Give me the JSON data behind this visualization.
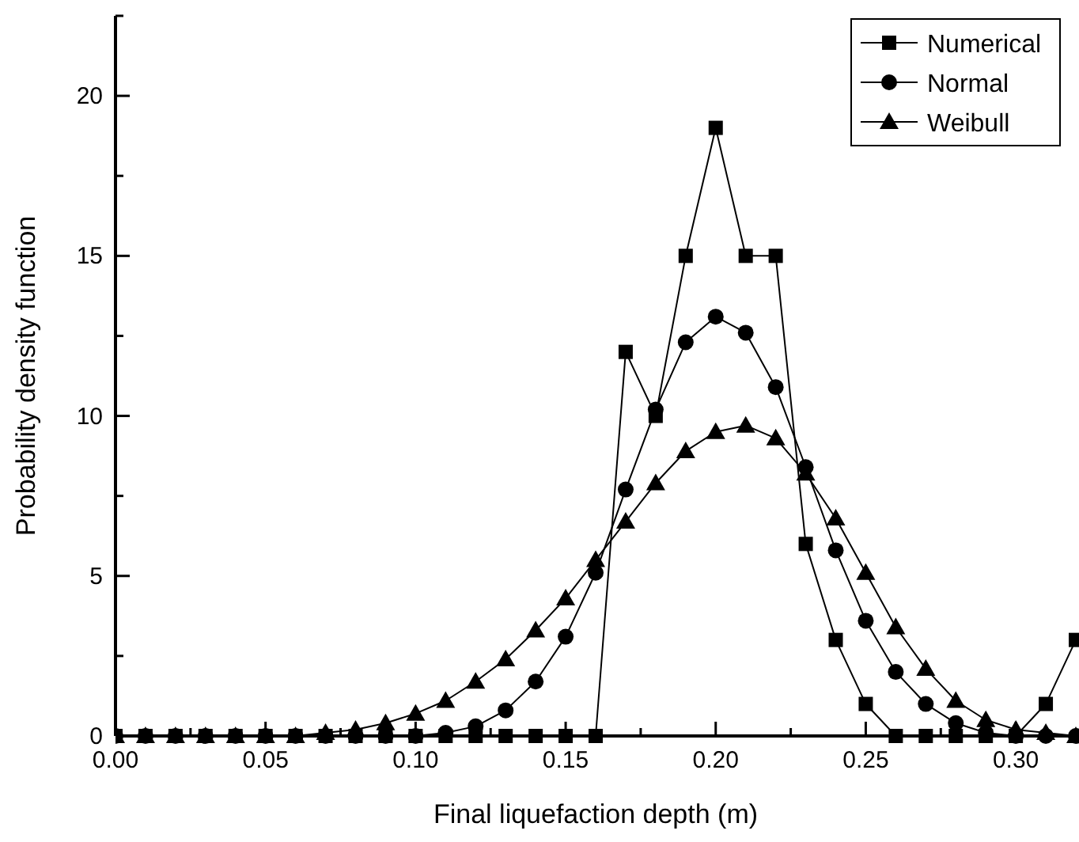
{
  "chart_data": {
    "type": "line",
    "xlabel": "Final liquefaction depth (m)",
    "ylabel": "Probability density function",
    "x": [
      0,
      0.01,
      0.02,
      0.03,
      0.04,
      0.05,
      0.06,
      0.07,
      0.08,
      0.09,
      0.1,
      0.11,
      0.12,
      0.13,
      0.14,
      0.15,
      0.16,
      0.17,
      0.18,
      0.19,
      0.2,
      0.21,
      0.22,
      0.23,
      0.24,
      0.25,
      0.26,
      0.27,
      0.28,
      0.29,
      0.3,
      0.31,
      0.32
    ],
    "series": [
      {
        "name": "Numerical",
        "color": "#000000",
        "marker": "square",
        "values": [
          0,
          0,
          0,
          0,
          0,
          0,
          0,
          0,
          0,
          0,
          0,
          0,
          0,
          0,
          0,
          0,
          0,
          12,
          10,
          15,
          19,
          15,
          15,
          6,
          3,
          1,
          0,
          0,
          0,
          0,
          0,
          1,
          3
        ]
      },
      {
        "name": "Normal",
        "color": "#000000",
        "marker": "circle",
        "values": [
          0,
          0,
          0,
          0,
          0,
          0,
          0,
          0,
          0,
          0,
          0,
          0.1,
          0.3,
          0.8,
          1.7,
          3.1,
          5.1,
          7.7,
          10.2,
          12.3,
          13.1,
          12.6,
          10.9,
          8.4,
          5.8,
          3.6,
          2,
          1,
          0.4,
          0.1,
          0,
          0,
          0
        ]
      },
      {
        "name": "Weibull",
        "color": "#000000",
        "marker": "triangle",
        "values": [
          0,
          0,
          0,
          0,
          0,
          0,
          0,
          0.1,
          0.2,
          0.4,
          0.7,
          1.1,
          1.7,
          2.4,
          3.3,
          4.3,
          5.5,
          6.7,
          7.9,
          8.9,
          9.5,
          9.7,
          9.3,
          8.2,
          6.8,
          5.1,
          3.4,
          2.1,
          1.1,
          0.5,
          0.2,
          0.1,
          0
        ]
      }
    ],
    "xlim": [
      0,
      0.32
    ],
    "xticks": [
      {
        "value": 0,
        "label": "0.00"
      },
      {
        "value": 0.025,
        "label": null
      },
      {
        "value": 0.05,
        "label": "0.05"
      },
      {
        "value": 0.075,
        "label": null
      },
      {
        "value": 0.1,
        "label": "0.10"
      },
      {
        "value": 0.125,
        "label": null
      },
      {
        "value": 0.15,
        "label": "0.15"
      },
      {
        "value": 0.175,
        "label": null
      },
      {
        "value": 0.2,
        "label": "0.20"
      },
      {
        "value": 0.225,
        "label": null
      },
      {
        "value": 0.25,
        "label": "0.25"
      },
      {
        "value": 0.275,
        "label": null
      },
      {
        "value": 0.3,
        "label": "0.30"
      }
    ],
    "ylim": [
      0,
      22.5
    ],
    "yticks": [
      0,
      {
        "value": 2.5,
        "label": null
      },
      5,
      {
        "value": 7.5,
        "label": null
      },
      10,
      {
        "value": 12.5,
        "label": null
      },
      15,
      {
        "value": 17.5,
        "label": null
      },
      20,
      {
        "value": 22.5,
        "label": null
      }
    ],
    "grid": false,
    "legend": "top right",
    "line_style": "solid"
  }
}
